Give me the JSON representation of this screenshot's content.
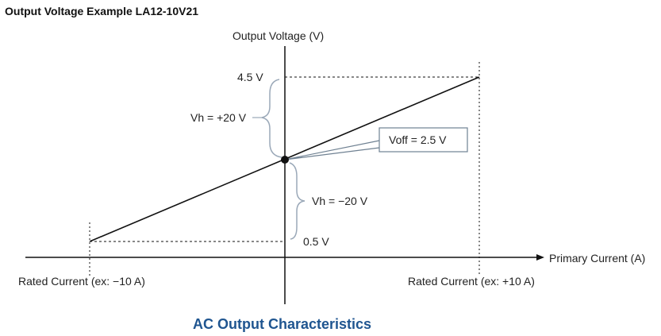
{
  "title": "Output Voltage Example LA12-10V21",
  "caption": "AC Output Characteristics",
  "caption_color": "#1f5590",
  "bracket_color": "#9aa8b8",
  "y_axis_label": "Output Voltage (V)",
  "x_axis_label": "Primary Current (A)",
  "labels": {
    "v_max": "4.5 V",
    "v_min": "0.5 V",
    "vh_pos": "Vh =  +20 V",
    "vh_neg": "Vh =  −20 V",
    "voff": "Voff =  2.5 V",
    "rated_neg": "Rated Current (ex: −10 A)",
    "rated_pos": "Rated Current (ex: +10 A)"
  }
}
